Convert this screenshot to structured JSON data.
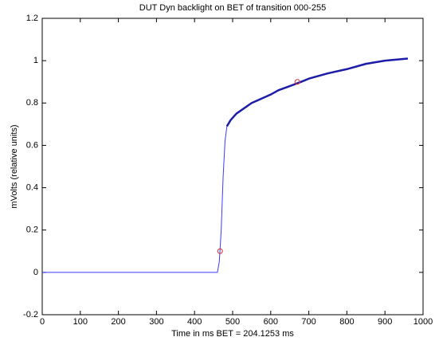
{
  "chart_data": {
    "type": "line",
    "title": "DUT Dyn backlight on BET of transition 000-255",
    "x_label": "Time in ms BET = 204.1253 ms",
    "y_label": "mVolts (relative units)",
    "xlim": [
      0,
      1000
    ],
    "xticks": [
      0,
      100,
      200,
      300,
      400,
      500,
      600,
      700,
      800,
      900,
      1000
    ],
    "ylim": [
      -0.2,
      1.2
    ],
    "yticks": [
      -0.2,
      0,
      0.2,
      0.4,
      0.6,
      0.8,
      1,
      1.2
    ],
    "grid": false,
    "series": [
      {
        "color": "#3b3bff",
        "line_width": 1,
        "x": [
          0,
          460,
          465,
          470,
          475,
          480,
          485,
          495,
          510,
          550,
          600,
          620,
          650,
          680,
          700,
          750,
          800,
          850,
          900,
          960
        ],
        "values": [
          0,
          0,
          0.05,
          0.2,
          0.45,
          0.62,
          0.69,
          0.72,
          0.75,
          0.8,
          0.84,
          0.86,
          0.88,
          0.9,
          0.915,
          0.94,
          0.96,
          0.985,
          1.0,
          1.01
        ]
      },
      {
        "color": "#1c1ca8",
        "line_width": 2.5,
        "x": [
          485,
          495,
          510,
          550,
          600,
          620,
          650,
          680,
          700,
          750,
          800,
          850,
          900,
          960
        ],
        "values": [
          0.69,
          0.72,
          0.75,
          0.8,
          0.84,
          0.86,
          0.88,
          0.9,
          0.915,
          0.94,
          0.96,
          0.985,
          1.0,
          1.01
        ]
      },
      {
        "color": "#e03030",
        "marker": "circle",
        "x": [
          467,
          670
        ],
        "values": [
          0.1,
          0.9
        ]
      }
    ]
  }
}
